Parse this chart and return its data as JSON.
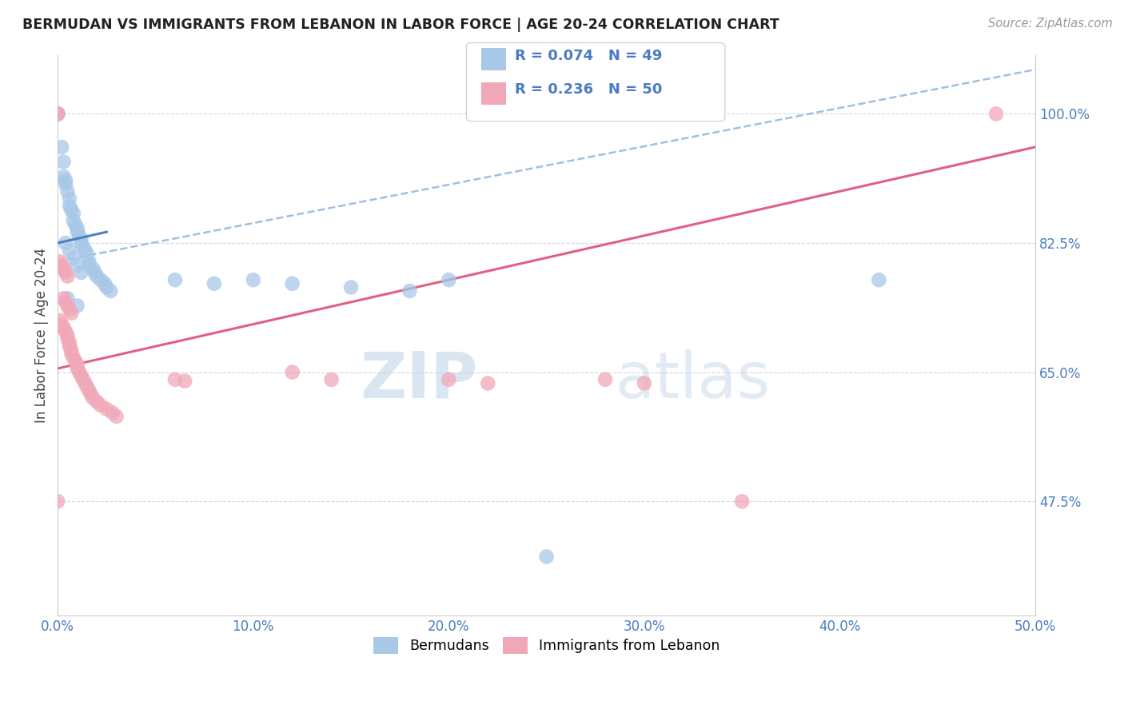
{
  "title": "BERMUDAN VS IMMIGRANTS FROM LEBANON IN LABOR FORCE | AGE 20-24 CORRELATION CHART",
  "source": "Source: ZipAtlas.com",
  "ylabel": "In Labor Force | Age 20-24",
  "xlim": [
    0.0,
    0.5
  ],
  "ylim": [
    0.32,
    1.08
  ],
  "xtick_labels": [
    "0.0%",
    "10.0%",
    "20.0%",
    "30.0%",
    "40.0%",
    "50.0%"
  ],
  "xtick_values": [
    0.0,
    0.1,
    0.2,
    0.3,
    0.4,
    0.5
  ],
  "ytick_labels_right": [
    "47.5%",
    "65.0%",
    "82.5%",
    "100.0%"
  ],
  "ytick_values_right": [
    0.475,
    0.65,
    0.825,
    1.0
  ],
  "watermark_zip": "ZIP",
  "watermark_atlas": "atlas",
  "legend_r1": "R = 0.074",
  "legend_n1": "N = 49",
  "legend_r2": "R = 0.236",
  "legend_n2": "N = 50",
  "color_blue": "#a8c8e8",
  "color_pink": "#f0a8b8",
  "color_trend_blue_dash": "#a0c0e0",
  "color_trend_blue_solid": "#4a80c0",
  "color_trend_pink": "#e06080",
  "title_color": "#222222",
  "tick_color": "#4a7cc0",
  "blue_x": [
    0.0,
    0.0,
    0.0,
    0.0,
    0.002,
    0.003,
    0.003,
    0.004,
    0.004,
    0.005,
    0.006,
    0.006,
    0.007,
    0.008,
    0.008,
    0.009,
    0.01,
    0.01,
    0.011,
    0.012,
    0.012,
    0.013,
    0.014,
    0.015,
    0.016,
    0.016,
    0.018,
    0.019,
    0.02,
    0.022,
    0.024,
    0.025,
    0.027,
    0.004,
    0.006,
    0.008,
    0.01,
    0.012,
    0.06,
    0.08,
    0.1,
    0.12,
    0.15,
    0.18,
    0.2,
    0.25,
    0.42,
    0.005,
    0.01
  ],
  "blue_y": [
    1.0,
    1.0,
    1.0,
    1.0,
    0.955,
    0.935,
    0.915,
    0.91,
    0.905,
    0.895,
    0.885,
    0.875,
    0.87,
    0.865,
    0.855,
    0.85,
    0.845,
    0.84,
    0.835,
    0.83,
    0.825,
    0.82,
    0.815,
    0.81,
    0.8,
    0.795,
    0.79,
    0.785,
    0.78,
    0.775,
    0.77,
    0.765,
    0.76,
    0.825,
    0.815,
    0.805,
    0.795,
    0.785,
    0.775,
    0.77,
    0.775,
    0.77,
    0.765,
    0.76,
    0.775,
    0.4,
    0.775,
    0.75,
    0.74
  ],
  "pink_x": [
    0.0,
    0.0,
    0.0,
    0.001,
    0.002,
    0.003,
    0.004,
    0.005,
    0.005,
    0.006,
    0.006,
    0.007,
    0.007,
    0.008,
    0.009,
    0.01,
    0.01,
    0.011,
    0.012,
    0.013,
    0.014,
    0.015,
    0.016,
    0.017,
    0.018,
    0.02,
    0.022,
    0.025,
    0.028,
    0.03,
    0.003,
    0.004,
    0.005,
    0.006,
    0.007,
    0.06,
    0.065,
    0.12,
    0.14,
    0.2,
    0.22,
    0.28,
    0.3,
    0.001,
    0.002,
    0.003,
    0.004,
    0.005,
    0.35,
    0.48
  ],
  "pink_y": [
    1.0,
    1.0,
    0.475,
    0.72,
    0.715,
    0.71,
    0.705,
    0.7,
    0.695,
    0.69,
    0.685,
    0.68,
    0.675,
    0.67,
    0.665,
    0.66,
    0.655,
    0.65,
    0.645,
    0.64,
    0.635,
    0.63,
    0.625,
    0.62,
    0.615,
    0.61,
    0.605,
    0.6,
    0.595,
    0.59,
    0.75,
    0.745,
    0.74,
    0.735,
    0.73,
    0.64,
    0.638,
    0.65,
    0.64,
    0.64,
    0.635,
    0.64,
    0.635,
    0.8,
    0.795,
    0.79,
    0.785,
    0.78,
    0.475,
    1.0
  ]
}
